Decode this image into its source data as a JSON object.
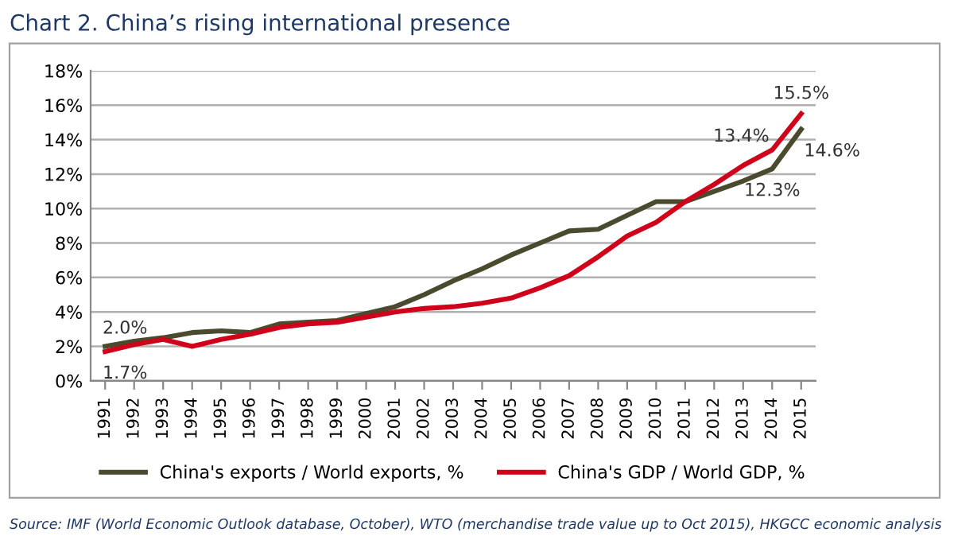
{
  "chart_data": {
    "type": "line",
    "title": "Chart 2. China’s rising international presence",
    "categories": [
      "1991",
      "1992",
      "1993",
      "1994",
      "1995",
      "1996",
      "1997",
      "1998",
      "1999",
      "2000",
      "2001",
      "2002",
      "2003",
      "2004",
      "2005",
      "2006",
      "2007",
      "2008",
      "2009",
      "2010",
      "2011",
      "2012",
      "2013",
      "2014",
      "2015"
    ],
    "series": [
      {
        "name": "China's exports / World exports, %",
        "color": "#4a4a2e",
        "values": [
          2.0,
          2.3,
          2.5,
          2.8,
          2.9,
          2.8,
          3.3,
          3.4,
          3.5,
          3.9,
          4.3,
          5.0,
          5.8,
          6.5,
          7.3,
          8.0,
          8.7,
          8.8,
          9.6,
          10.4,
          10.4,
          11.0,
          11.6,
          12.3,
          14.6
        ],
        "value_labels": [
          "2.0%",
          null,
          null,
          null,
          null,
          null,
          null,
          null,
          null,
          null,
          null,
          null,
          null,
          null,
          null,
          null,
          null,
          null,
          null,
          null,
          null,
          null,
          null,
          "12.3%",
          "14.6%"
        ]
      },
      {
        "name": "China's GDP / World GDP, %",
        "color": "#d0021b",
        "values": [
          1.7,
          2.1,
          2.4,
          2.0,
          2.4,
          2.7,
          3.1,
          3.3,
          3.4,
          3.7,
          4.0,
          4.2,
          4.3,
          4.5,
          4.8,
          5.4,
          6.1,
          7.2,
          8.4,
          9.2,
          10.4,
          11.4,
          12.5,
          13.4,
          15.5
        ],
        "value_labels": [
          "1.7%",
          null,
          null,
          null,
          null,
          null,
          null,
          null,
          null,
          null,
          null,
          null,
          null,
          null,
          null,
          null,
          null,
          null,
          null,
          null,
          null,
          null,
          null,
          "13.4%",
          "15.5%"
        ]
      }
    ],
    "ylim": [
      0,
      18
    ],
    "yticks": [
      {
        "value": 0,
        "label": "0%"
      },
      {
        "value": 2,
        "label": "2%"
      },
      {
        "value": 4,
        "label": "4%"
      },
      {
        "value": 6,
        "label": "6%"
      },
      {
        "value": 8,
        "label": "8%"
      },
      {
        "value": 10,
        "label": "10%"
      },
      {
        "value": 12,
        "label": "12%"
      },
      {
        "value": 14,
        "label": "14%"
      },
      {
        "value": 16,
        "label": "16%"
      },
      {
        "value": 18,
        "label": "18%"
      }
    ],
    "grid": "y",
    "legend": "bottom",
    "marker": "none",
    "line_style": "solid",
    "annotations": [
      "Source: IMF (World Economic Outlook database, October), WTO (merchandise trade value up to Oct 2015), HKGCC economic analysis"
    ]
  }
}
